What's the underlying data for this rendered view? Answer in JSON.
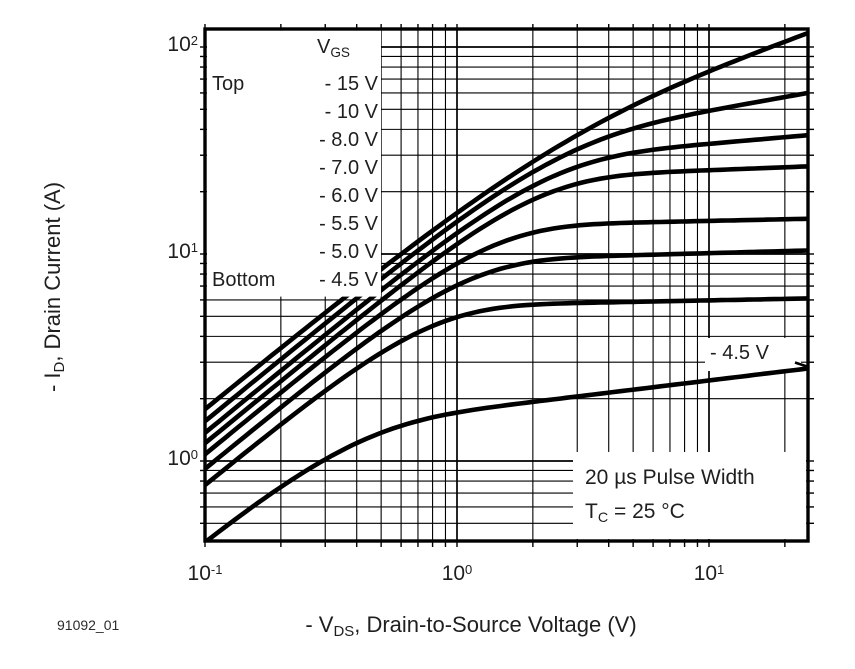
{
  "figure_id": "91092_01",
  "chart_data": {
    "type": "line",
    "title": "",
    "x_axis": {
      "label_prefix": "- V",
      "label_sub": "DS",
      "label_suffix": ", Drain-to-Source Voltage (V)",
      "scale": "log",
      "min": 0.1,
      "max": 25,
      "ticks": [
        {
          "base": "10",
          "exp": "-1",
          "value": 0.1
        },
        {
          "base": "10",
          "exp": "0",
          "value": 1
        },
        {
          "base": "10",
          "exp": "1",
          "value": 10
        }
      ]
    },
    "y_axis": {
      "label_prefix": "- I",
      "label_sub": "D",
      "label_suffix": ", Drain Current (A)",
      "scale": "log",
      "min": 0.4,
      "max": 120,
      "ticks": [
        {
          "base": "10",
          "exp": "2",
          "value": 100
        },
        {
          "base": "10",
          "exp": "1",
          "value": 10
        },
        {
          "base": "10",
          "exp": "0",
          "value": 1
        }
      ]
    },
    "grid": "log minor gridlines on both axes",
    "legend": {
      "header_base": "V",
      "header_sub": "GS",
      "top_row_label": "Top",
      "bottom_row_label": "Bottom",
      "entries": [
        "- 15 V",
        "- 10 V",
        "- 8.0 V",
        "- 7.0 V",
        "- 6.0 V",
        "- 5.5 V",
        "- 5.0 V",
        "- 4.5 V"
      ]
    },
    "series": [
      {
        "vgs": "-15 V",
        "i_at_0p1v_A": 1.8,
        "i_sat_3v_A": 45.0,
        "i_at_25v_A": 117.0
      },
      {
        "vgs": "-10 V",
        "i_at_0p1v_A": 1.56,
        "i_sat_3v_A": 38.0,
        "i_at_25v_A": 60.0
      },
      {
        "vgs": "-8.0 V",
        "i_at_0p1v_A": 1.37,
        "i_sat_3v_A": 30.0,
        "i_at_25v_A": 37.5
      },
      {
        "vgs": "-7.0 V",
        "i_at_0p1v_A": 1.22,
        "i_sat_3v_A": 24.0,
        "i_at_25v_A": 26.5
      },
      {
        "vgs": "-6.0 V",
        "i_at_0p1v_A": 1.08,
        "i_sat_3v_A": 14.0,
        "i_at_25v_A": 14.8
      },
      {
        "vgs": "-5.5 V",
        "i_at_0p1v_A": 0.92,
        "i_sat_3v_A": 9.7,
        "i_at_25v_A": 10.4
      },
      {
        "vgs": "-5.0 V",
        "i_at_0p1v_A": 0.77,
        "i_sat_3v_A": 5.8,
        "i_at_25v_A": 6.1
      },
      {
        "vgs": "-4.5 V",
        "i_at_0p1v_A": 0.42,
        "i_sat_3v_A": 2.05,
        "i_at_25v_A": 2.8
      }
    ],
    "annotation": {
      "text": "- 4.5 V"
    },
    "conditions": {
      "line1": "20 µs Pulse Width",
      "line2_base": "T",
      "line2_sub": "C",
      "line2_rest": " = 25 °C"
    },
    "colors": {
      "curve": "#000000",
      "grid": "#000000",
      "text": "#1f1f1f",
      "background": "#ffffff"
    }
  }
}
